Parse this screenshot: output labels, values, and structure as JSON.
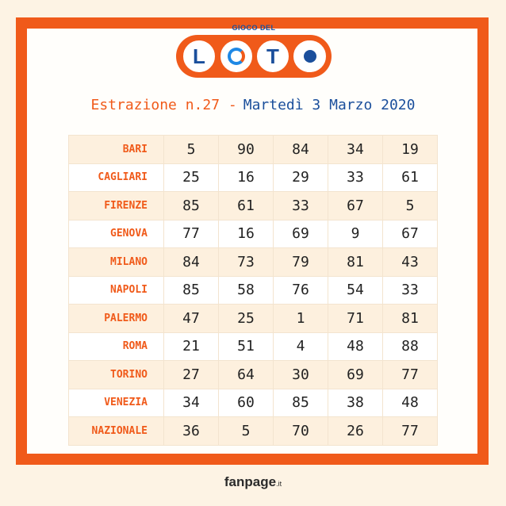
{
  "logo": {
    "top_text": "GIOCO DEL",
    "letters": [
      "L",
      "T",
      "T"
    ]
  },
  "heading": {
    "label": "Estrazione n.27 -",
    "date": "Martedì 3 Marzo 2020"
  },
  "results": [
    {
      "city": "BARI",
      "numbers": [
        "5",
        "90",
        "84",
        "34",
        "19"
      ]
    },
    {
      "city": "CAGLIARI",
      "numbers": [
        "25",
        "16",
        "29",
        "33",
        "61"
      ]
    },
    {
      "city": "FIRENZE",
      "numbers": [
        "85",
        "61",
        "33",
        "67",
        "5"
      ]
    },
    {
      "city": "GENOVA",
      "numbers": [
        "77",
        "16",
        "69",
        "9",
        "67"
      ]
    },
    {
      "city": "MILANO",
      "numbers": [
        "84",
        "73",
        "79",
        "81",
        "43"
      ]
    },
    {
      "city": "NAPOLI",
      "numbers": [
        "85",
        "58",
        "76",
        "54",
        "33"
      ]
    },
    {
      "city": "PALERMO",
      "numbers": [
        "47",
        "25",
        "1",
        "71",
        "81"
      ]
    },
    {
      "city": "ROMA",
      "numbers": [
        "21",
        "51",
        "4",
        "48",
        "88"
      ]
    },
    {
      "city": "TORINO",
      "numbers": [
        "27",
        "64",
        "30",
        "69",
        "77"
      ]
    },
    {
      "city": "VENEZIA",
      "numbers": [
        "34",
        "60",
        "85",
        "38",
        "48"
      ]
    },
    {
      "city": "NAZIONALE",
      "numbers": [
        "36",
        "5",
        "70",
        "26",
        "77"
      ]
    }
  ],
  "footer": {
    "brand": "fanpage",
    "tld": ".it"
  },
  "colors": {
    "accent_orange": "#f05a1a",
    "accent_blue": "#1b4f9c"
  }
}
